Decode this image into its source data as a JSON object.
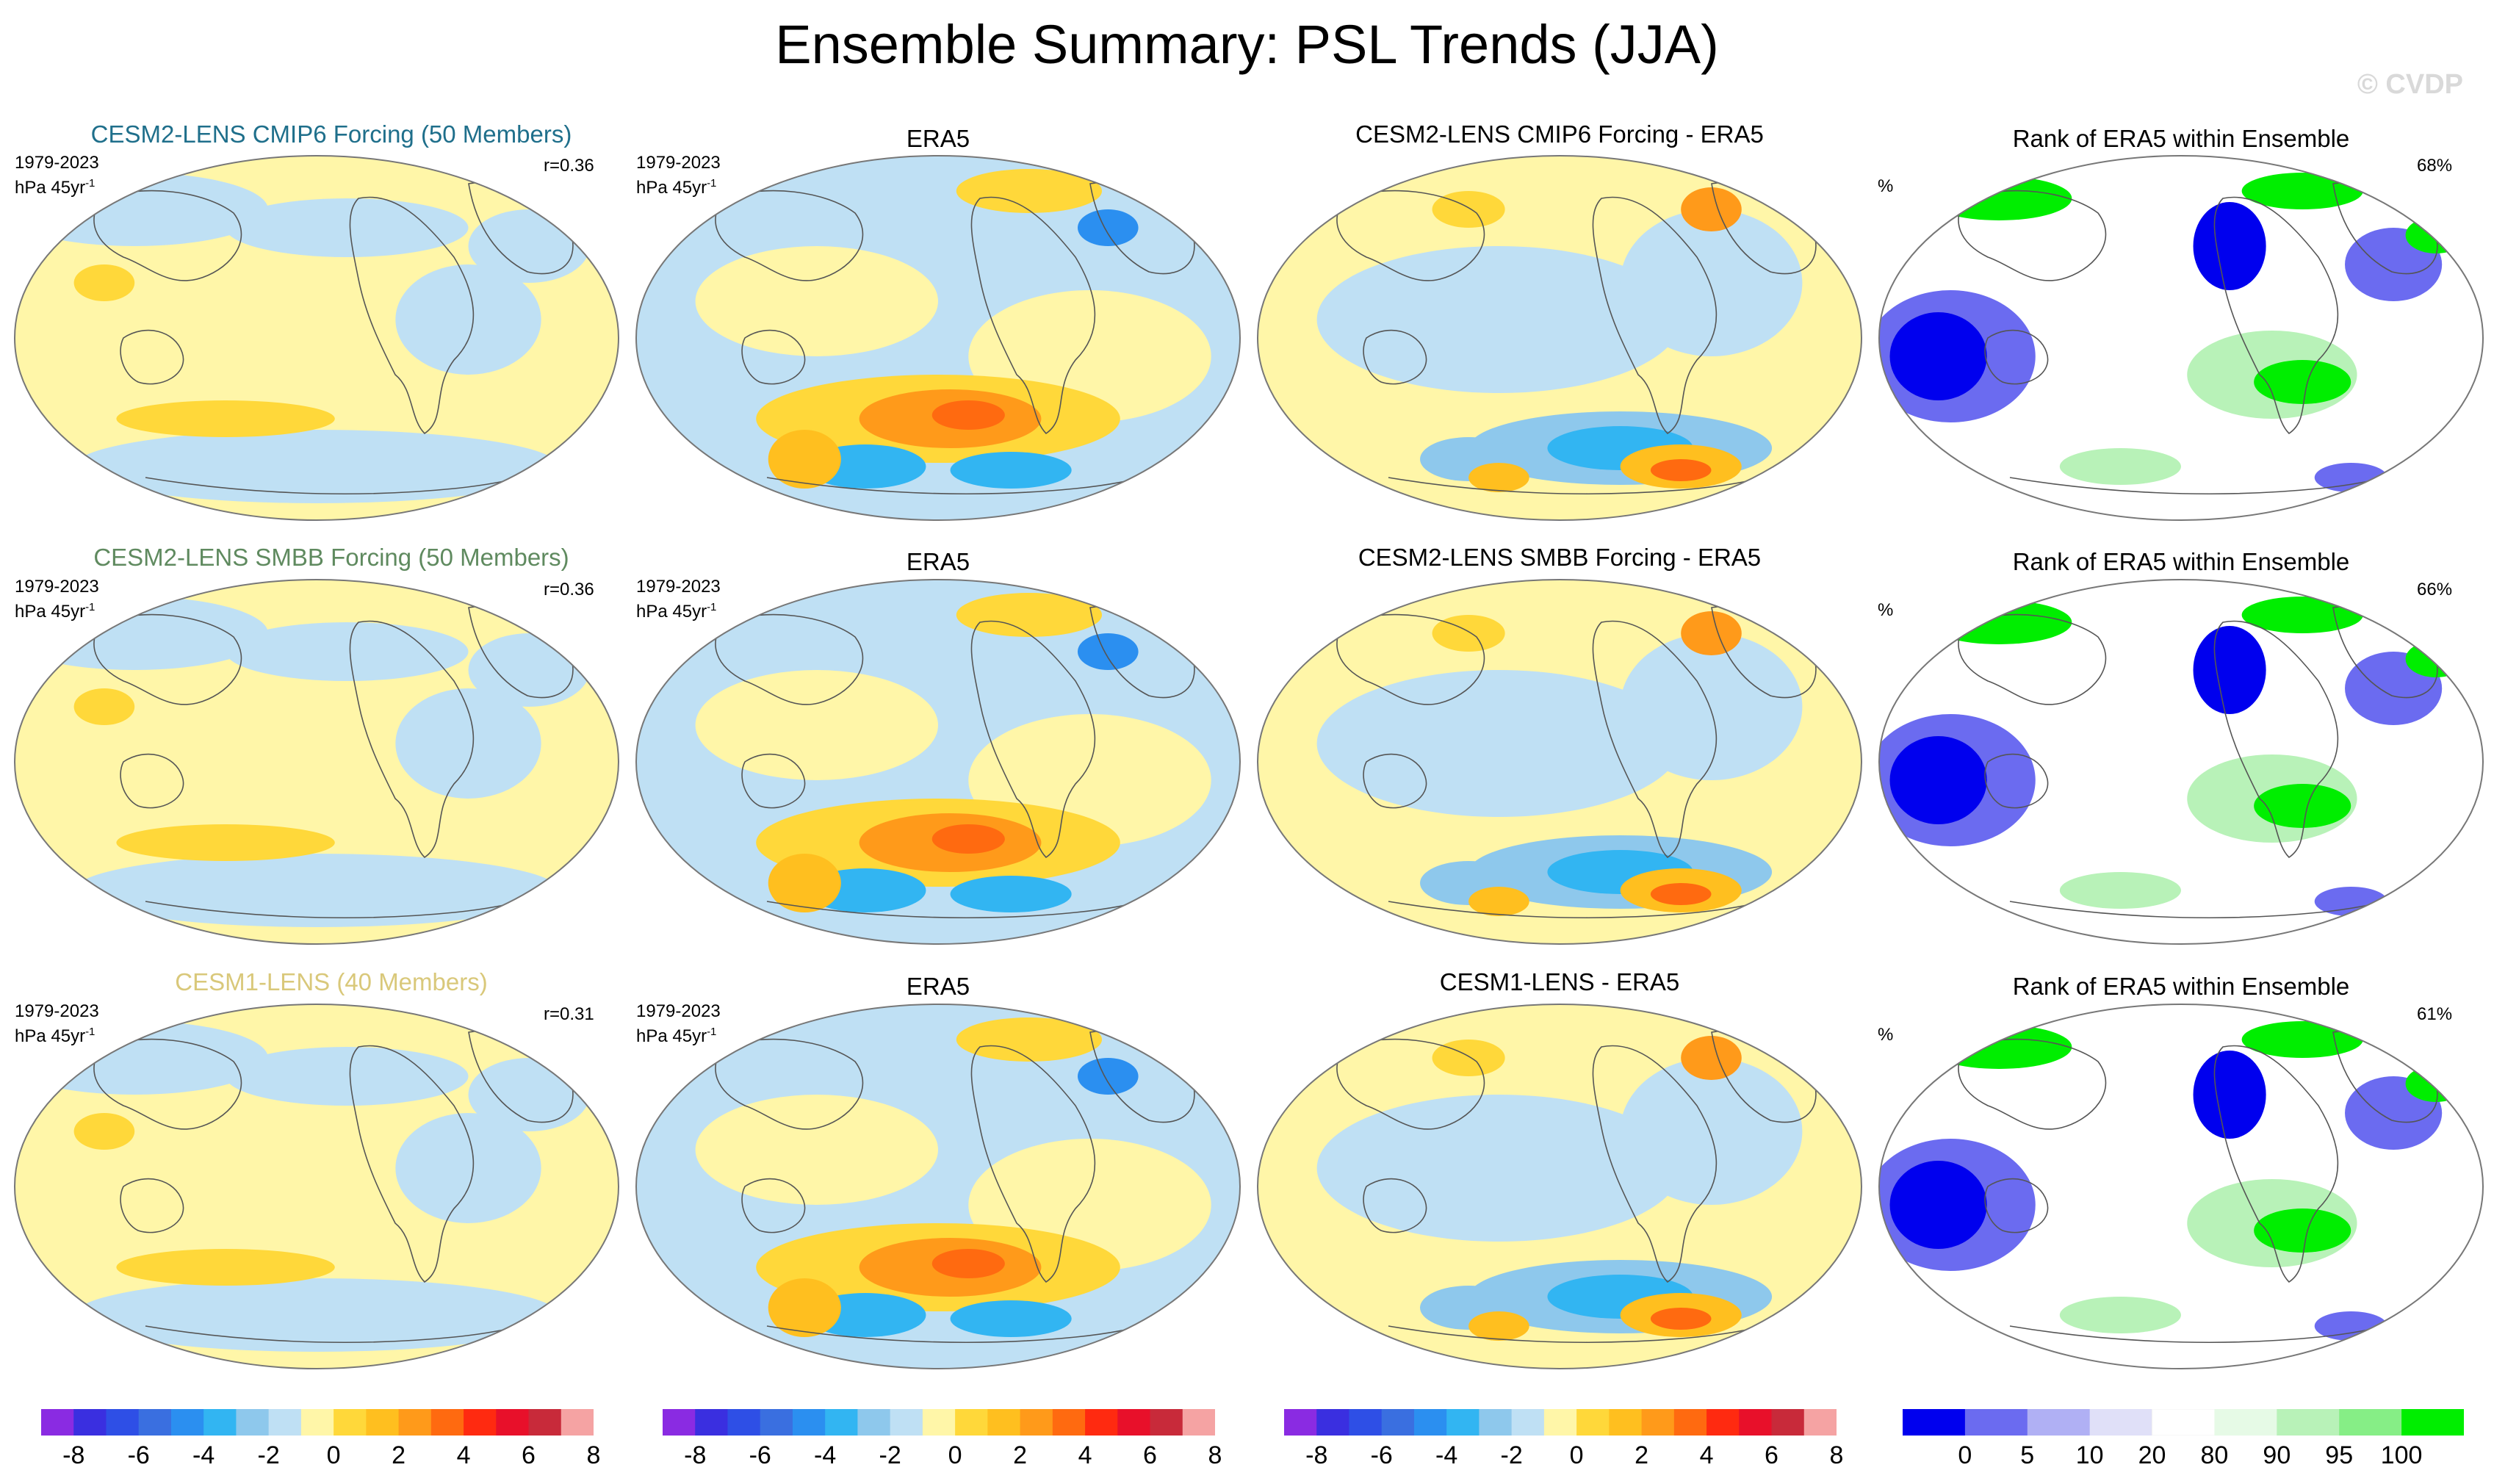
{
  "title": "Ensemble Summary: PSL Trends (JJA)",
  "watermark": "© CVDP",
  "rows": [
    {
      "model_title": "CESM2-LENS CMIP6 Forcing (50 Members)",
      "model_title_color": "#1f6f8b",
      "period": "1979-2023",
      "units": "hPa 45yr",
      "units_exp": "-1",
      "r_value": "r=0.36",
      "obs_title": "ERA5",
      "diff_title": "CESM2-LENS CMIP6 Forcing - ERA5",
      "rank_title": "Rank of ERA5 within Ensemble",
      "rank_unit": "%",
      "rank_pct": "68%"
    },
    {
      "model_title": "CESM2-LENS SMBB Forcing (50 Members)",
      "model_title_color": "#5f8a5f",
      "period": "1979-2023",
      "units": "hPa 45yr",
      "units_exp": "-1",
      "r_value": "r=0.36",
      "obs_title": "ERA5",
      "diff_title": "CESM2-LENS SMBB Forcing - ERA5",
      "rank_title": "Rank of ERA5 within Ensemble",
      "rank_unit": "%",
      "rank_pct": "66%"
    },
    {
      "model_title": "CESM1-LENS (40 Members)",
      "model_title_color": "#d9c87a",
      "period": "1979-2023",
      "units": "hPa 45yr",
      "units_exp": "-1",
      "r_value": "r=0.31",
      "obs_title": "ERA5",
      "diff_title": "CESM1-LENS - ERA5",
      "rank_title": "Rank of ERA5 within Ensemble",
      "rank_unit": "%",
      "rank_pct": "61%"
    }
  ],
  "colors": {
    "trend_palette": [
      "#8a2be2",
      "#3a2fe0",
      "#2e4fe6",
      "#3a6fe0",
      "#2b8ff0",
      "#32b5f2",
      "#8ec8ec",
      "#bfe0f4",
      "#fff6a8",
      "#ffd83a",
      "#ffbf1f",
      "#ff9a1a",
      "#ff6a10",
      "#ff2a10",
      "#e8102a",
      "#c82a3a",
      "#f5a3a3"
    ],
    "rank_palette": [
      "#0000ee",
      "#6b6bf0",
      "#b0b0f4",
      "#e0e0f8",
      "#ffffff",
      "#e6fae6",
      "#b8f2b8",
      "#86ee86",
      "#00ee00"
    ]
  },
  "chart_data": [
    {
      "type": "heatmap",
      "description_key": "trend_colorbar",
      "levels": [
        -8,
        -7,
        -6,
        -5,
        -4,
        -3,
        -2,
        -1,
        0,
        1,
        2,
        3,
        4,
        5,
        6,
        7,
        8
      ],
      "tick_labels": [
        "-8",
        "-6",
        "-4",
        "-2",
        "0",
        "2",
        "4",
        "6",
        "8"
      ],
      "tick_values": [
        -8,
        -6,
        -4,
        -2,
        0,
        2,
        4,
        6,
        8
      ]
    },
    {
      "type": "heatmap",
      "description_key": "rank_colorbar",
      "levels": [
        0,
        5,
        10,
        20,
        80,
        90,
        95,
        100
      ],
      "tick_labels": [
        "0",
        "5",
        "10",
        "20",
        "80",
        "90",
        "95",
        "100"
      ]
    }
  ]
}
